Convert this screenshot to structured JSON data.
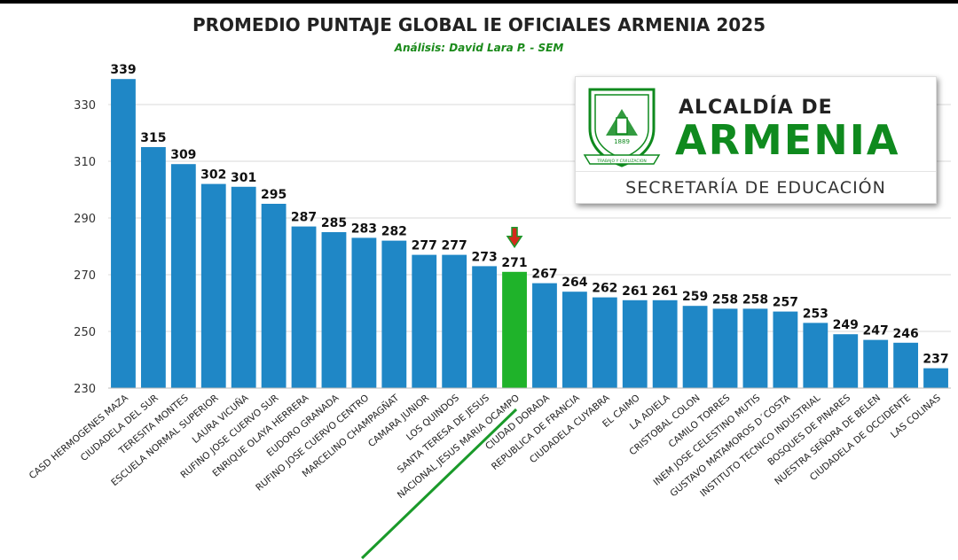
{
  "chart_data": {
    "type": "bar",
    "title": "PROMEDIO PUNTAJE GLOBAL IE OFICIALES ARMENIA 2025",
    "subtitle": "Análisis: David Lara P. - SEM",
    "categories": [
      "CASD HERMOGENES MAZA",
      "CIUDADELA DEL SUR",
      "TERESITA MONTES",
      "ESCUELA NORMAL SUPERIOR",
      "LAURA VICUÑA",
      "RUFINO JOSE CUERVO SUR",
      "ENRIQUE OLAYA HERRERA",
      "EUDORO GRANADA",
      "RUFINO JOSE CUERVO CENTRO",
      "MARCELINO CHAMPAGÑAT",
      "CAMARA JUNIOR",
      "LOS QUINDOS",
      "SANTA TERESA DE JESUS",
      "NACIONAL JESUS MARIA OCAMPO",
      "CIUDAD DORADA",
      "REPUBLICA DE FRANCIA",
      "CIUDADELA CUYABRA",
      "EL CAIMO",
      "LA ADIELA",
      "CRISTOBAL COLON",
      "CAMILO TORRES",
      "INEM JOSE CELESTINO MUTIS",
      "GUSTAVO MATAMOROS D´COSTA",
      "INSTITUTO TECNICO INDUSTRIAL",
      "BOSQUES DE PINARES",
      "NUESTRA SEÑORA DE BELEN",
      "CIUDADELA DE OCCIDENTE",
      "LAS COLINAS"
    ],
    "values": [
      339,
      315,
      309,
      302,
      301,
      295,
      287,
      285,
      283,
      282,
      277,
      277,
      273,
      271,
      267,
      264,
      262,
      261,
      261,
      259,
      258,
      258,
      257,
      253,
      249,
      247,
      246,
      237
    ],
    "highlight_index": 13,
    "ylim": [
      230,
      340
    ],
    "yticks": [
      230,
      250,
      270,
      290,
      310,
      330
    ],
    "grid": true,
    "legend": "none",
    "colors": {
      "bar": "#1f87c6",
      "highlight": "#1fb32a",
      "arrow_fill": "#d42a1c",
      "arrow_outline": "#1a9a2a",
      "underline": "#1a9a2a"
    }
  },
  "logo": {
    "line1": "ALCALDÍA DE",
    "line2": "ARMENIA",
    "line3": "SECRETARÍA DE EDUCACIÓN",
    "shield_year": "1889",
    "shield_motto": "TRABAJO Y CIVILIZACION",
    "colors": {
      "green": "#0f8a1e",
      "text": "#222222"
    }
  }
}
